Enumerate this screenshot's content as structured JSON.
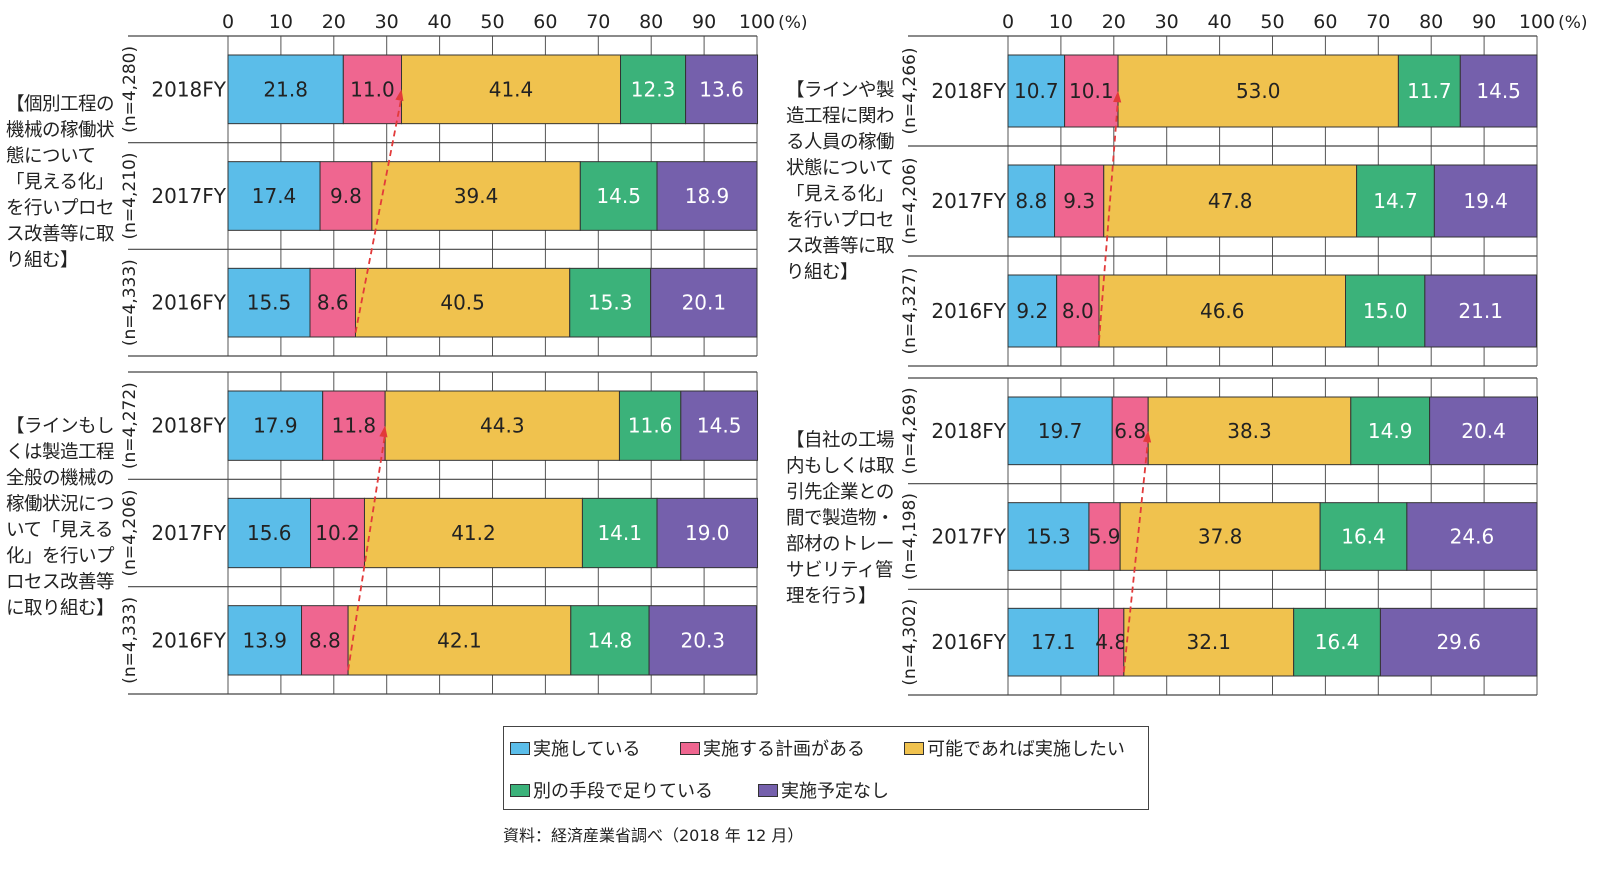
{
  "colors": {
    "implementing": "#5bbde9",
    "planned": "#ef6690",
    "want_if_possible": "#f0c24e",
    "other_means": "#3bb27a",
    "no_plan": "#7560ac",
    "trend_arrow": "#e23a3a"
  },
  "chart_data": {
    "type": "bar",
    "orientation": "horizontal",
    "stacked": true,
    "xlim": [
      0,
      100
    ],
    "xticks": [
      "0",
      "10",
      "20",
      "30",
      "40",
      "50",
      "60",
      "70",
      "80",
      "90",
      "100"
    ],
    "xunit": "(%)",
    "grid": true,
    "legend_position": "bottom",
    "series_names": [
      "実施している",
      "実施する計画がある",
      "可能であれば実施したい",
      "別の手段で足りている",
      "実施予定なし"
    ],
    "panels": [
      {
        "title": "【個別工程の機械の稼働状態について「見える化」を行いプロセス改善等に取り組む】",
        "categories": [
          "2018FY",
          "2017FY",
          "2016FY"
        ],
        "n_labels": [
          "(n=4,280)",
          "(n=4,210)",
          "(n=4,333)"
        ],
        "values": [
          [
            21.8,
            11.0,
            41.4,
            12.3,
            13.6
          ],
          [
            17.4,
            9.8,
            39.4,
            14.5,
            18.9
          ],
          [
            15.5,
            8.6,
            40.5,
            15.3,
            20.1
          ]
        ]
      },
      {
        "title": "【ラインや製造工程に関わる人員の稼働状態について「見える化」を行いプロセス改善等に取り組む】",
        "categories": [
          "2018FY",
          "2017FY",
          "2016FY"
        ],
        "n_labels": [
          "(n=4,266)",
          "(n=4,206)",
          "(n=4,327)"
        ],
        "values": [
          [
            10.7,
            10.1,
            53.0,
            11.7,
            14.5
          ],
          [
            8.8,
            9.3,
            47.8,
            14.7,
            19.4
          ],
          [
            9.2,
            8.0,
            46.6,
            15.0,
            21.1
          ]
        ]
      },
      {
        "title": "【ラインもしくは製造工程全般の機械の稼働状況について「見える化」を行いプロセス改善等に取り組む】",
        "categories": [
          "2018FY",
          "2017FY",
          "2016FY"
        ],
        "n_labels": [
          "(n=4,272)",
          "(n=4,206)",
          "(n=4,333)"
        ],
        "values": [
          [
            17.9,
            11.8,
            44.3,
            11.6,
            14.5
          ],
          [
            15.6,
            10.2,
            41.2,
            14.1,
            19.0
          ],
          [
            13.9,
            8.8,
            42.1,
            14.8,
            20.3
          ]
        ]
      },
      {
        "title": "【自社の工場内もしくは取引先企業との間で製造物・部材のトレーサビリティ管理を行う】",
        "categories": [
          "2018FY",
          "2017FY",
          "2016FY"
        ],
        "n_labels": [
          "(n=4,269)",
          "(n=4,198)",
          "(n=4,302)"
        ],
        "values": [
          [
            19.7,
            6.8,
            38.3,
            14.9,
            20.4
          ],
          [
            15.3,
            5.9,
            37.8,
            16.4,
            24.6
          ],
          [
            17.1,
            4.8,
            32.1,
            16.4,
            29.6
          ]
        ]
      }
    ]
  },
  "legend": {
    "items": [
      "実施している",
      "実施する計画がある",
      "可能であれば実施したい",
      "別の手段で足りている",
      "実施予定なし"
    ]
  },
  "source": "資料：経済産業省調べ（2018 年 12 月）"
}
